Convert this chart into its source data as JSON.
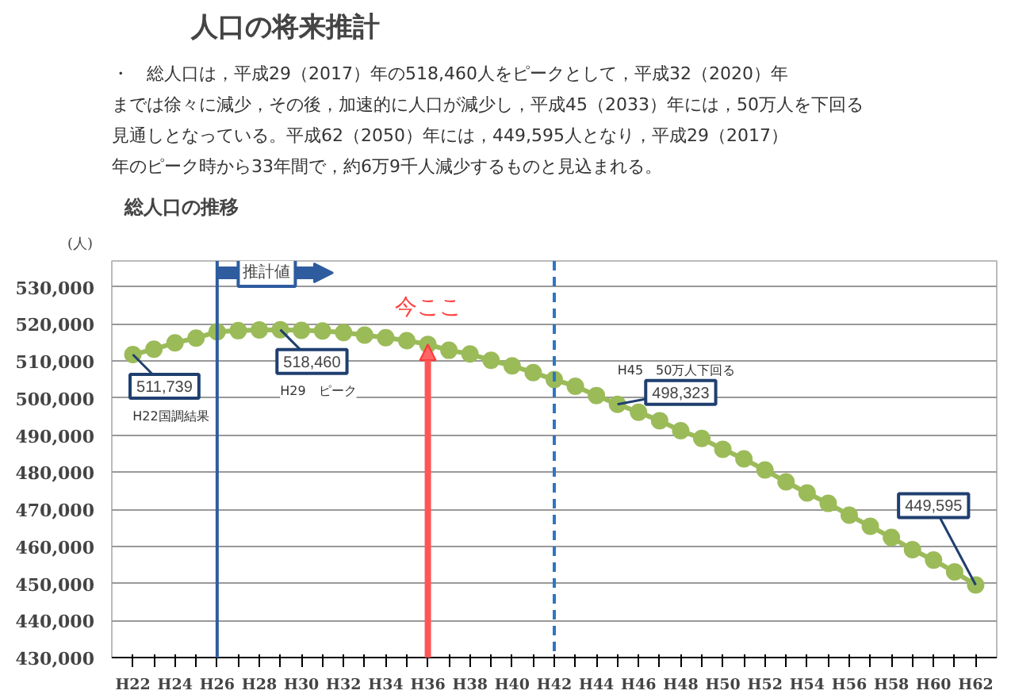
{
  "chart_data": {
    "type": "line",
    "title": "人口の将来推計",
    "subtitle": "・　総人口は，平成29（2017）年の518,460人をピークとして，平成32（2020）年までは徐々に減少，その後，加速的に人口が減少し，平成45（2033）年には，50万人を下回る見通しとなっている。平成62（2050）年には，449,595人となり，平成29（2017）年のピーク時から33年間で，約6万9千人減少するものと見込まれる。",
    "ylabel": "(人)",
    "annotations": [
      "総人口の推移",
      "H22国調結果",
      "H29　ピーク",
      "H45　50万人下回る",
      {
        "text": "今ここ",
        "x": "H36",
        "y": 514500
      }
    ],
    "categories": [
      "H22",
      null,
      "H24",
      null,
      "H26",
      null,
      "H28",
      null,
      "H30",
      null,
      "H32",
      null,
      "H34",
      null,
      "H36",
      null,
      "H38",
      null,
      "H40",
      null,
      "H42",
      null,
      "H44",
      null,
      "H46",
      null,
      "H48",
      null,
      "H50",
      null,
      "H52",
      null,
      "H54",
      null,
      "H56",
      null,
      "H58",
      null,
      "H60",
      null,
      "H62"
    ],
    "series": [
      {
        "color": "#9bbb59",
        "values": [
          511739,
          513200,
          514900,
          516200,
          517900,
          518200,
          518400,
          518460,
          518300,
          518100,
          517700,
          517000,
          516300,
          515500,
          514500,
          512900,
          511900,
          510200,
          508700,
          506900,
          505000,
          503200,
          500700,
          498323,
          496200,
          493900,
          491200,
          489100,
          486200,
          483600,
          480600,
          477400,
          474400,
          471600,
          468400,
          465400,
          462400,
          459100,
          456300,
          453100,
          449595
        ],
        "value_labels": [
          "511,739",
          null,
          null,
          null,
          null,
          null,
          null,
          "518,460",
          null,
          null,
          null,
          null,
          null,
          null,
          null,
          null,
          null,
          null,
          null,
          null,
          null,
          null,
          null,
          "498,323",
          null,
          null,
          null,
          null,
          null,
          null,
          null,
          null,
          null,
          null,
          null,
          null,
          null,
          null,
          null,
          null,
          "449,595"
        ]
      }
    ],
    "ylim": [
      430000,
      537000
    ],
    "yticks": [
      {
        "value": 430000,
        "label": "430,000"
      },
      {
        "value": 440000,
        "label": "440,000"
      },
      {
        "value": 450000,
        "label": "450,000"
      },
      {
        "value": 460000,
        "label": "460,000"
      },
      {
        "value": 470000,
        "label": "470,000"
      },
      {
        "value": 480000,
        "label": "480,000"
      },
      {
        "value": 490000,
        "label": "490,000"
      },
      {
        "value": 500000,
        "label": "500,000"
      },
      {
        "value": 510000,
        "label": "510,000"
      },
      {
        "value": 520000,
        "label": "520,000"
      },
      {
        "value": 530000,
        "label": "530,000"
      }
    ],
    "ref_lines": [
      {
        "axis": "x",
        "value": "H26",
        "label": "推計値",
        "color": "#2e5c9e",
        "line_style": "solid"
      },
      {
        "axis": "x",
        "value": "H42",
        "label": null,
        "color": "#2e75c6",
        "line_style": "dashed"
      }
    ],
    "grid": "y",
    "legend": false,
    "marker": "circle",
    "line_style": "solid"
  }
}
